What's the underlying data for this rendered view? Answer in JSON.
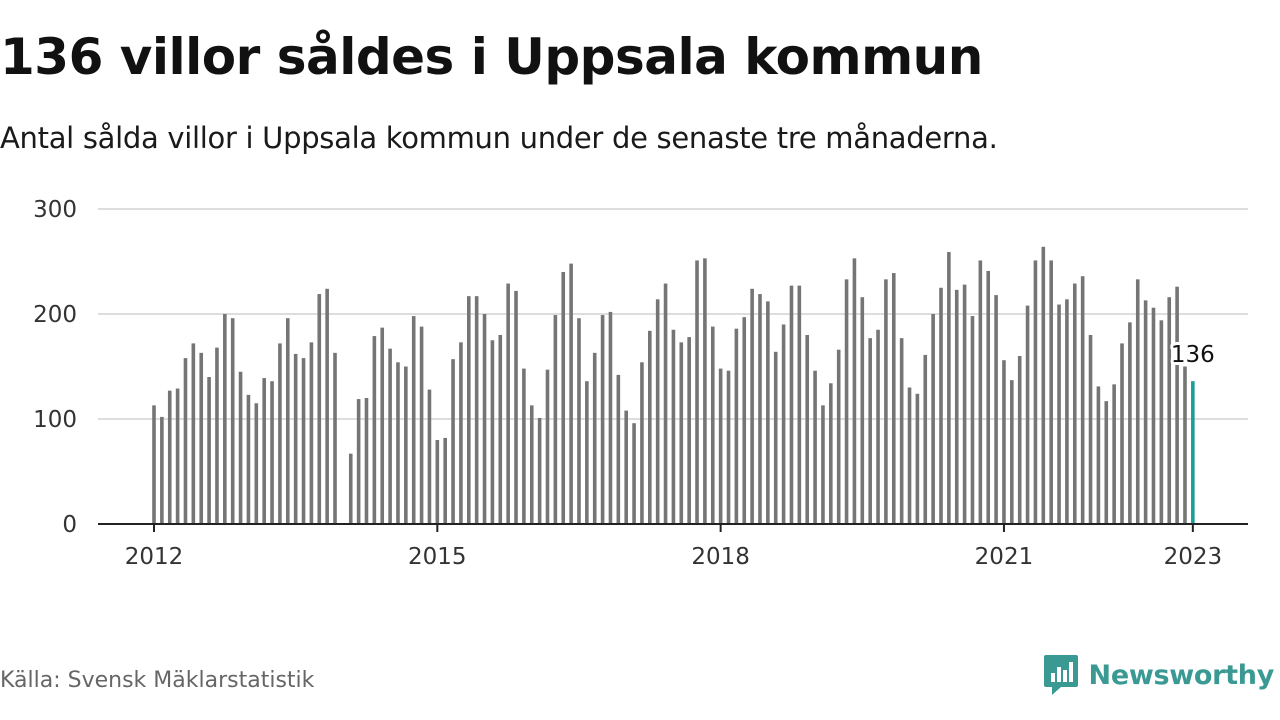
{
  "title": "136 villor såldes i Uppsala kommun",
  "subtitle": "Antal sålda villor i Uppsala kommun under de senaste tre månaderna.",
  "source": "Källa: Svensk Mäklarstatistik",
  "brand": {
    "name": "Newsworthy",
    "icon": "newsworthy-logo-icon",
    "color": "#3a9a93"
  },
  "colors": {
    "bar": "#757575",
    "highlight": "#1a9e96",
    "grid": "#dddddd",
    "axis": "#222222"
  },
  "chart_data": {
    "type": "bar",
    "ylim": [
      0,
      300
    ],
    "yticks": [
      0,
      100,
      200,
      300
    ],
    "xticks": [
      "2012",
      "2015",
      "2018",
      "2021",
      "2023"
    ],
    "grid": true,
    "x_start": "2012-01",
    "x_end": "2023-01",
    "highlight": {
      "label": "136",
      "index": 132
    },
    "values": [
      113,
      102,
      127,
      129,
      158,
      172,
      163,
      140,
      168,
      200,
      196,
      145,
      123,
      115,
      139,
      136,
      172,
      196,
      162,
      158,
      173,
      219,
      224,
      163,
      null,
      67,
      119,
      120,
      179,
      187,
      167,
      154,
      150,
      198,
      188,
      128,
      80,
      82,
      157,
      173,
      217,
      217,
      200,
      175,
      180,
      229,
      222,
      148,
      113,
      101,
      147,
      199,
      240,
      248,
      196,
      136,
      163,
      199,
      202,
      142,
      108,
      96,
      154,
      184,
      214,
      229,
      185,
      173,
      178,
      251,
      253,
      188,
      148,
      146,
      186,
      197,
      224,
      219,
      212,
      164,
      190,
      227,
      227,
      180,
      146,
      113,
      134,
      166,
      233,
      253,
      216,
      177,
      185,
      233,
      239,
      177,
      130,
      124,
      161,
      200,
      225,
      259,
      223,
      228,
      198,
      251,
      241,
      218,
      156,
      137,
      160,
      208,
      251,
      264,
      251,
      209,
      214,
      229,
      236,
      180,
      131,
      117,
      133,
      172,
      192,
      233,
      213,
      206,
      194,
      216,
      226,
      150,
      136
    ]
  }
}
